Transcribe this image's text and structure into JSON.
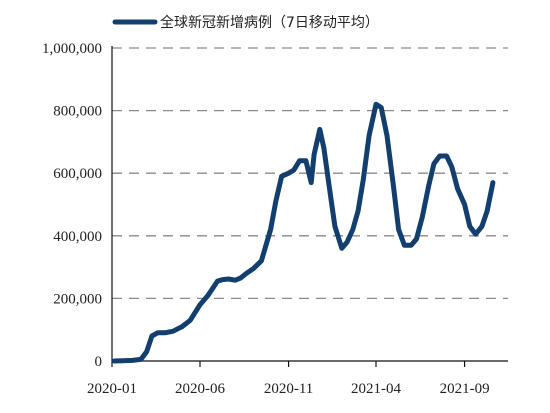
{
  "chart_data": {
    "type": "line",
    "title": "",
    "xlabel": "",
    "ylabel": "",
    "ylim": [
      0,
      1000000
    ],
    "yticks": [
      0,
      200000,
      400000,
      600000,
      800000,
      1000000
    ],
    "ytick_labels": [
      "0",
      "200,000",
      "400,000",
      "600,000",
      "800,000",
      "1,000,000"
    ],
    "xtick_labels": [
      "2020-01",
      "2020-06",
      "2020-11",
      "2021-04",
      "2021-09"
    ],
    "grid": "horizontal dashed",
    "legend_position": "top",
    "series": [
      {
        "name": "全球新冠新增病例（7日移动平均）",
        "color": "#123f6e",
        "x": [
          "2020-01-05",
          "2020-01-20",
          "2020-02-05",
          "2020-02-20",
          "2020-03-01",
          "2020-03-10",
          "2020-03-20",
          "2020-04-01",
          "2020-04-15",
          "2020-05-01",
          "2020-05-15",
          "2020-06-01",
          "2020-06-15",
          "2020-07-01",
          "2020-07-10",
          "2020-07-20",
          "2020-08-01",
          "2020-08-10",
          "2020-08-20",
          "2020-09-01",
          "2020-09-15",
          "2020-10-01",
          "2020-10-10",
          "2020-10-20",
          "2020-11-01",
          "2020-11-10",
          "2020-11-20",
          "2020-12-01",
          "2020-12-10",
          "2020-12-15",
          "2020-12-25",
          "2021-01-01",
          "2021-01-10",
          "2021-01-20",
          "2021-02-01",
          "2021-02-10",
          "2021-02-20",
          "2021-03-01",
          "2021-03-10",
          "2021-03-20",
          "2021-04-01",
          "2021-04-10",
          "2021-04-20",
          "2021-05-01",
          "2021-05-10",
          "2021-05-20",
          "2021-06-01",
          "2021-06-10",
          "2021-06-20",
          "2021-07-01",
          "2021-07-10",
          "2021-07-20",
          "2021-08-01",
          "2021-08-10",
          "2021-08-20",
          "2021-09-01",
          "2021-09-10",
          "2021-09-20",
          "2021-10-01",
          "2021-10-10",
          "2021-10-20"
        ],
        "values": [
          0,
          1000,
          2000,
          5000,
          30000,
          80000,
          90000,
          90000,
          95000,
          110000,
          130000,
          180000,
          210000,
          255000,
          260000,
          262000,
          258000,
          265000,
          280000,
          295000,
          320000,
          420000,
          510000,
          590000,
          600000,
          610000,
          640000,
          640000,
          570000,
          660000,
          740000,
          680000,
          560000,
          430000,
          360000,
          380000,
          420000,
          480000,
          580000,
          720000,
          820000,
          810000,
          720000,
          560000,
          420000,
          370000,
          370000,
          390000,
          460000,
          560000,
          630000,
          655000,
          655000,
          620000,
          550000,
          500000,
          430000,
          405000,
          430000,
          480000,
          570000
        ]
      }
    ]
  }
}
